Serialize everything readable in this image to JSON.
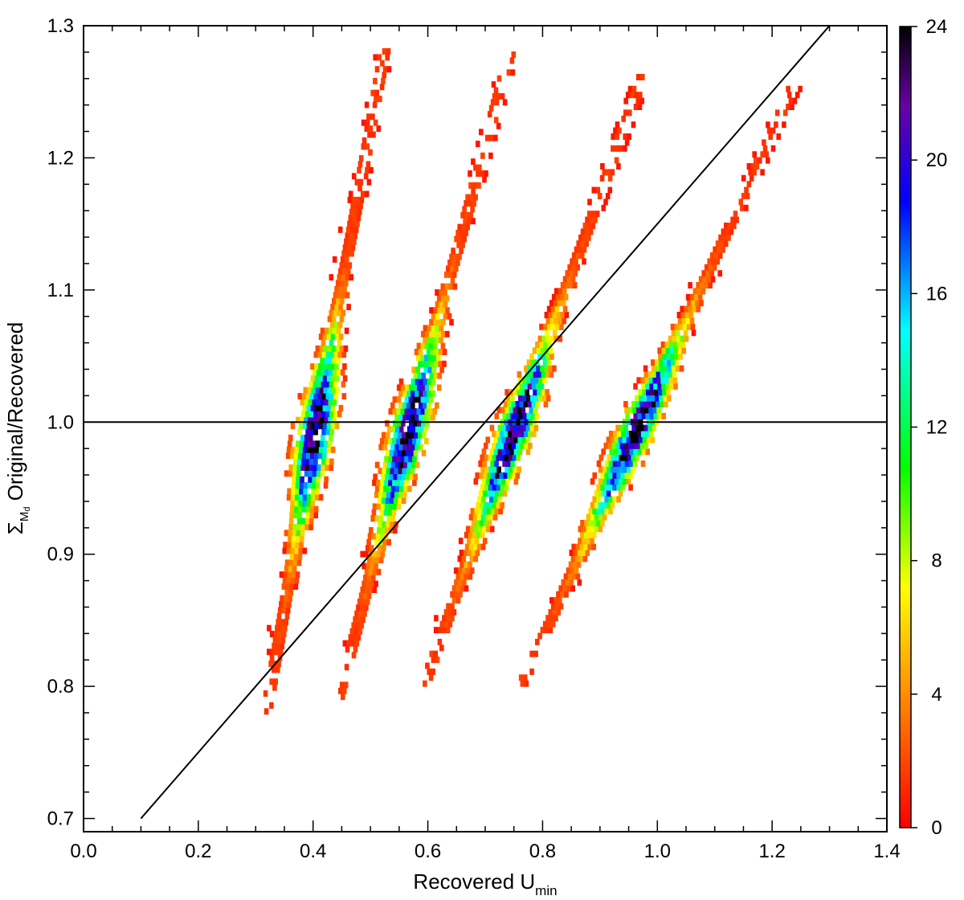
{
  "chart_data": {
    "type": "heatmap",
    "title": "",
    "xlabel": {
      "main": "Recovered U",
      "sub": "min"
    },
    "ylabel": {
      "symbol": "Σ",
      "sub": "M",
      "subsub": "d",
      "rest": " Original/Recovered"
    },
    "xlim": [
      0.0,
      1.4
    ],
    "ylim": [
      0.69,
      1.3
    ],
    "xticks": [
      "0.0",
      "0.2",
      "0.4",
      "0.6",
      "0.8",
      "1.0",
      "1.2",
      "1.4"
    ],
    "xtick_values": [
      0.0,
      0.2,
      0.4,
      0.6,
      0.8,
      1.0,
      1.2,
      1.4
    ],
    "yticks": [
      "0.7",
      "0.8",
      "0.9",
      "1.0",
      "1.1",
      "1.2",
      "1.3"
    ],
    "ytick_values": [
      0.7,
      0.8,
      0.9,
      1.0,
      1.1,
      1.2,
      1.3
    ],
    "grid": false,
    "colorbar": {
      "range": [
        0,
        24
      ],
      "ticks": [
        "0",
        "4",
        "8",
        "12",
        "16",
        "20",
        "24"
      ],
      "tick_values": [
        0,
        4,
        8,
        12,
        16,
        20,
        24
      ],
      "colors": [
        "#ff0000",
        "#ff7f00",
        "#ffff00",
        "#00ff00",
        "#00ffff",
        "#0000ff",
        "#6a00a8",
        "#000000"
      ],
      "position": "right"
    },
    "reference_lines": [
      {
        "name": "unity",
        "x": [
          0.0,
          1.4
        ],
        "y": [
          1.0,
          1.0
        ]
      },
      {
        "name": "diagonal",
        "x": [
          0.1,
          1.3
        ],
        "y": [
          0.7,
          1.3
        ]
      }
    ],
    "clusters": [
      {
        "x": [
          0.31,
          0.52
        ],
        "y": [
          0.77,
          1.28
        ],
        "peak": 24
      },
      {
        "x": [
          0.44,
          0.74
        ],
        "y": [
          0.79,
          1.28
        ],
        "peak": 24
      },
      {
        "x": [
          0.59,
          0.97
        ],
        "y": [
          0.8,
          1.26
        ],
        "peak": 24
      },
      {
        "x": [
          0.76,
          1.23
        ],
        "y": [
          0.8,
          1.25
        ],
        "peak": 24
      }
    ]
  }
}
